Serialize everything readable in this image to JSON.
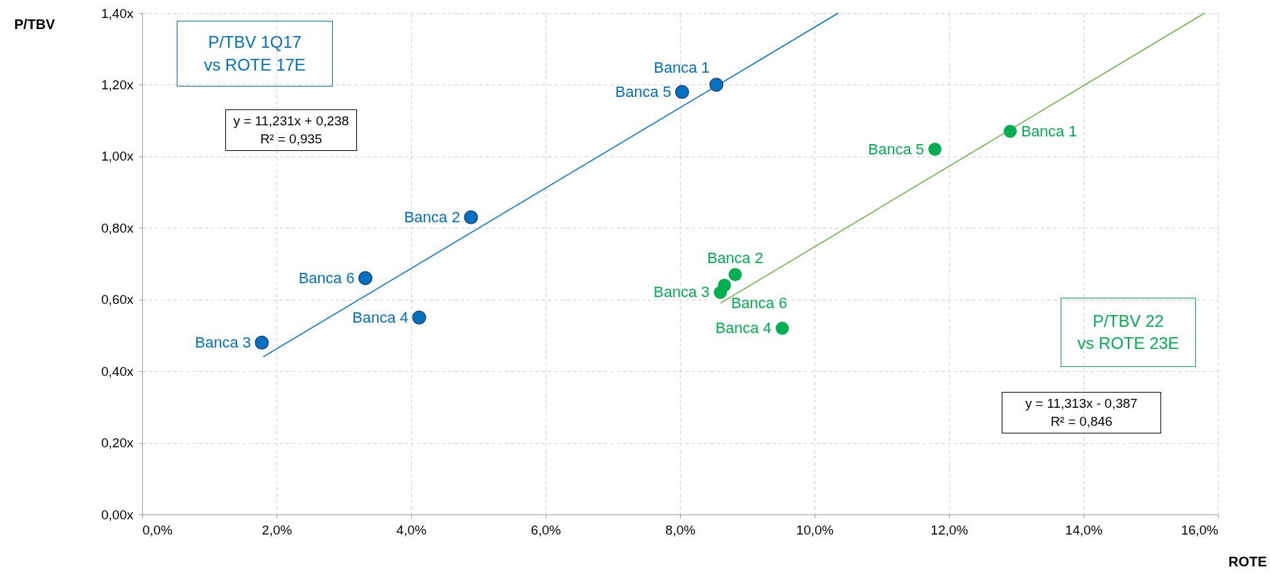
{
  "chart_data": {
    "type": "scatter",
    "xlabel": "ROTE",
    "ylabel": "P/TBV",
    "xlim": [
      0,
      16
    ],
    "xticks": [
      {
        "value": 0,
        "label": "0,0%"
      },
      {
        "value": 2,
        "label": "2,0%"
      },
      {
        "value": 4,
        "label": "4,0%"
      },
      {
        "value": 6,
        "label": "6,0%"
      },
      {
        "value": 8,
        "label": "8,0%"
      },
      {
        "value": 10,
        "label": "10,0%"
      },
      {
        "value": 12,
        "label": "12,0%"
      },
      {
        "value": 14,
        "label": "14,0%"
      },
      {
        "value": 16,
        "label": "16,0%"
      }
    ],
    "ylim": [
      0,
      1.4
    ],
    "yticks": [
      {
        "value": 0,
        "label": "0,00x"
      },
      {
        "value": 0.2,
        "label": "0,20x"
      },
      {
        "value": 0.4,
        "label": "0,40x"
      },
      {
        "value": 0.6,
        "label": "0,60x"
      },
      {
        "value": 0.8,
        "label": "0,80x"
      },
      {
        "value": 1.0,
        "label": "1,00x"
      },
      {
        "value": 1.2,
        "label": "1,20x"
      },
      {
        "value": 1.4,
        "label": "1,40x"
      }
    ],
    "grid": true,
    "legend": false,
    "series": [
      {
        "type": "scatter",
        "name": "P/TBV 1Q17 vs ROTE 17E",
        "color": "#0070c0",
        "marker": "circle",
        "x": [
          8.54,
          4.89,
          1.78,
          4.12,
          8.03,
          3.32
        ],
        "values": [
          1.2,
          0.83,
          0.48,
          0.55,
          1.18,
          0.66
        ],
        "value_labels": [
          "Banca 1",
          "Banca 2",
          "Banca 3",
          "Banca 4",
          "Banca 5",
          "Banca 6"
        ]
      },
      {
        "type": "line",
        "color": "#0070c0",
        "x": [
          1.8,
          10.35
        ],
        "values": [
          0.44,
          1.4
        ]
      },
      {
        "type": "scatter",
        "name": "P/TBV 22 vs ROTE 23E",
        "color": "#00b050",
        "marker": "circle",
        "x": [
          12.91,
          8.82,
          8.6,
          9.52,
          11.79,
          8.66
        ],
        "values": [
          1.07,
          0.67,
          0.62,
          0.52,
          1.02,
          0.64
        ],
        "value_labels": [
          "Banca 1",
          "Banca 2",
          "Banca 3",
          "Banca 4",
          "Banca 5",
          "Banca 6"
        ]
      },
      {
        "type": "line",
        "color": "#70ad47",
        "x": [
          8.6,
          15.8
        ],
        "values": [
          0.59,
          1.4
        ]
      }
    ],
    "annotations": [
      "y = 11,231x + 0,238",
      "R² = 0,935",
      "y = 11,313x - 0,387",
      "R² = 0,846"
    ]
  }
}
